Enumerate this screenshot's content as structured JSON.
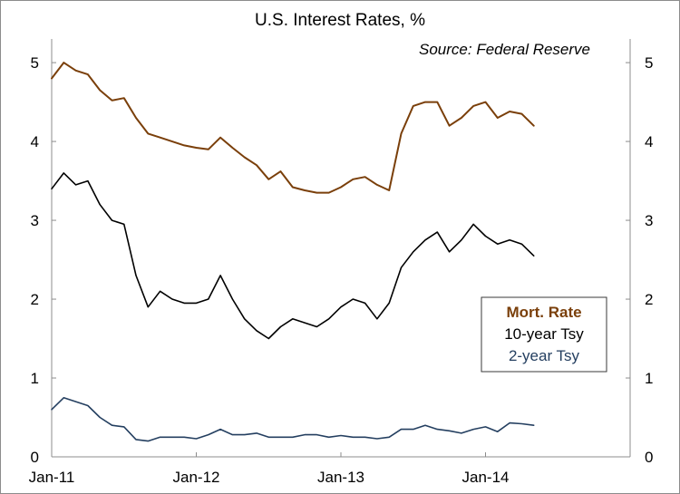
{
  "chart_data": {
    "type": "line",
    "title": "U.S. Interest Rates, %",
    "annotation": "Source: Federal Reserve",
    "xlabel": "",
    "ylabel": "",
    "ylim": [
      0,
      5.3
    ],
    "yticks": [
      0,
      1,
      2,
      3,
      4,
      5
    ],
    "xlim": [
      "2011-01",
      "2015-01"
    ],
    "xticks": [
      "Jan-11",
      "Jan-12",
      "Jan-13",
      "Jan-14"
    ],
    "grid": false,
    "legend_position": "right",
    "series": [
      {
        "name": "Mort. Rate",
        "color": "#7a3f0a",
        "bold": true,
        "x": [
          "2011-01",
          "2011-02",
          "2011-03",
          "2011-04",
          "2011-05",
          "2011-06",
          "2011-07",
          "2011-08",
          "2011-09",
          "2011-10",
          "2011-11",
          "2011-12",
          "2012-01",
          "2012-02",
          "2012-03",
          "2012-04",
          "2012-05",
          "2012-06",
          "2012-07",
          "2012-08",
          "2012-09",
          "2012-10",
          "2012-11",
          "2012-12",
          "2013-01",
          "2013-02",
          "2013-03",
          "2013-04",
          "2013-05",
          "2013-06",
          "2013-07",
          "2013-08",
          "2013-09",
          "2013-10",
          "2013-11",
          "2013-12",
          "2014-01",
          "2014-02",
          "2014-03",
          "2014-04",
          "2014-05"
        ],
        "values": [
          4.8,
          5.0,
          4.9,
          4.85,
          4.65,
          4.52,
          4.55,
          4.3,
          4.1,
          4.05,
          4.0,
          3.95,
          3.92,
          3.9,
          4.05,
          3.92,
          3.8,
          3.7,
          3.52,
          3.62,
          3.42,
          3.38,
          3.35,
          3.35,
          3.42,
          3.52,
          3.55,
          3.45,
          3.38,
          4.1,
          4.45,
          4.5,
          4.5,
          4.2,
          4.3,
          4.45,
          4.5,
          4.3,
          4.38,
          4.35,
          4.2
        ]
      },
      {
        "name": "10-year Tsy",
        "color": "#000000",
        "bold": false,
        "x": [
          "2011-01",
          "2011-02",
          "2011-03",
          "2011-04",
          "2011-05",
          "2011-06",
          "2011-07",
          "2011-08",
          "2011-09",
          "2011-10",
          "2011-11",
          "2011-12",
          "2012-01",
          "2012-02",
          "2012-03",
          "2012-04",
          "2012-05",
          "2012-06",
          "2012-07",
          "2012-08",
          "2012-09",
          "2012-10",
          "2012-11",
          "2012-12",
          "2013-01",
          "2013-02",
          "2013-03",
          "2013-04",
          "2013-05",
          "2013-06",
          "2013-07",
          "2013-08",
          "2013-09",
          "2013-10",
          "2013-11",
          "2013-12",
          "2014-01",
          "2014-02",
          "2014-03",
          "2014-04",
          "2014-05"
        ],
        "values": [
          3.4,
          3.6,
          3.45,
          3.5,
          3.2,
          3.0,
          2.95,
          2.3,
          1.9,
          2.1,
          2.0,
          1.95,
          1.95,
          2.0,
          2.3,
          2.0,
          1.75,
          1.6,
          1.5,
          1.65,
          1.75,
          1.7,
          1.65,
          1.75,
          1.9,
          2.0,
          1.95,
          1.75,
          1.95,
          2.4,
          2.6,
          2.75,
          2.85,
          2.6,
          2.75,
          2.95,
          2.8,
          2.7,
          2.75,
          2.7,
          2.55
        ]
      },
      {
        "name": "2-year Tsy",
        "color": "#243f60",
        "bold": false,
        "x": [
          "2011-01",
          "2011-02",
          "2011-03",
          "2011-04",
          "2011-05",
          "2011-06",
          "2011-07",
          "2011-08",
          "2011-09",
          "2011-10",
          "2011-11",
          "2011-12",
          "2012-01",
          "2012-02",
          "2012-03",
          "2012-04",
          "2012-05",
          "2012-06",
          "2012-07",
          "2012-08",
          "2012-09",
          "2012-10",
          "2012-11",
          "2012-12",
          "2013-01",
          "2013-02",
          "2013-03",
          "2013-04",
          "2013-05",
          "2013-06",
          "2013-07",
          "2013-08",
          "2013-09",
          "2013-10",
          "2013-11",
          "2013-12",
          "2014-01",
          "2014-02",
          "2014-03",
          "2014-04",
          "2014-05"
        ],
        "values": [
          0.6,
          0.75,
          0.7,
          0.65,
          0.5,
          0.4,
          0.38,
          0.22,
          0.2,
          0.25,
          0.25,
          0.25,
          0.23,
          0.28,
          0.35,
          0.28,
          0.28,
          0.3,
          0.25,
          0.25,
          0.25,
          0.28,
          0.28,
          0.25,
          0.27,
          0.25,
          0.25,
          0.23,
          0.25,
          0.35,
          0.35,
          0.4,
          0.35,
          0.33,
          0.3,
          0.35,
          0.38,
          0.32,
          0.43,
          0.42,
          0.4
        ]
      }
    ]
  }
}
